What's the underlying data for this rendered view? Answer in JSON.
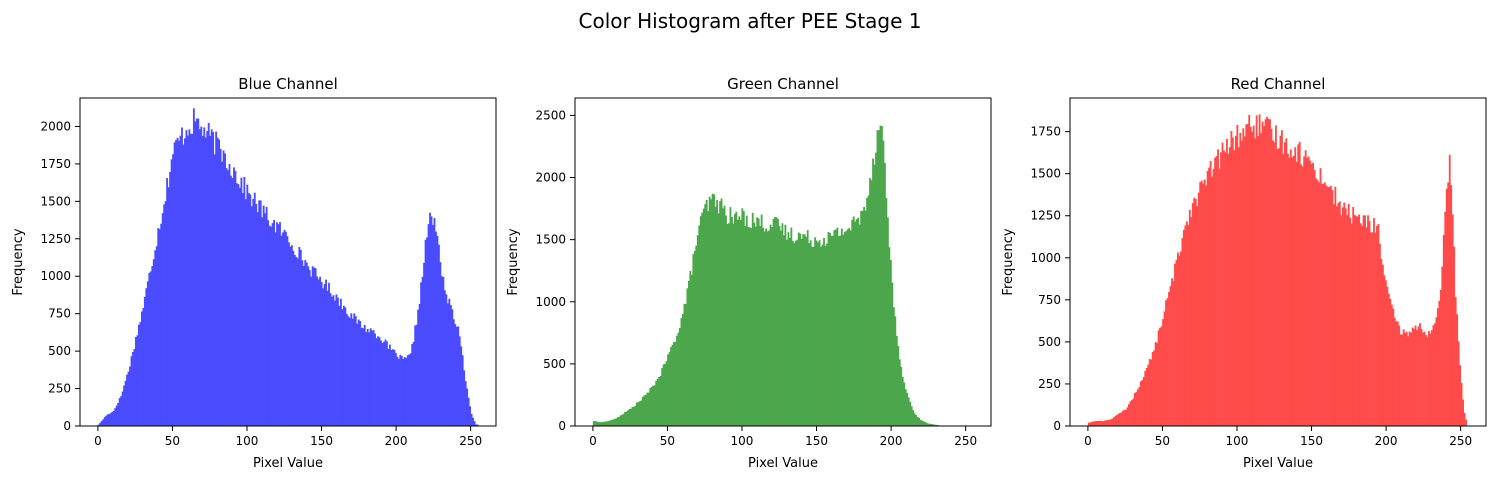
{
  "figure": {
    "title": "Color Histogram after PEE Stage 1"
  },
  "chart_data": [
    {
      "type": "bar",
      "title": "Blue Channel",
      "xlabel": "Pixel Value",
      "ylabel": "Frequency",
      "color": "#4b4bff",
      "xlim": [
        -12,
        267
      ],
      "ylim": [
        0,
        2190
      ],
      "xticks": [
        0,
        50,
        100,
        150,
        200,
        250
      ],
      "yticks": [
        0,
        250,
        500,
        750,
        1000,
        1250,
        1500,
        1750,
        2000
      ],
      "envelope": [
        [
          0,
          10
        ],
        [
          5,
          70
        ],
        [
          10,
          100
        ],
        [
          15,
          200
        ],
        [
          20,
          370
        ],
        [
          25,
          580
        ],
        [
          30,
          800
        ],
        [
          35,
          1050
        ],
        [
          40,
          1300
        ],
        [
          45,
          1550
        ],
        [
          50,
          1830
        ],
        [
          55,
          1920
        ],
        [
          60,
          2000
        ],
        [
          65,
          2040
        ],
        [
          70,
          1980
        ],
        [
          75,
          1930
        ],
        [
          80,
          1870
        ],
        [
          85,
          1800
        ],
        [
          90,
          1720
        ],
        [
          95,
          1640
        ],
        [
          100,
          1560
        ],
        [
          105,
          1500
        ],
        [
          110,
          1440
        ],
        [
          115,
          1380
        ],
        [
          120,
          1330
        ],
        [
          125,
          1280
        ],
        [
          130,
          1220
        ],
        [
          135,
          1150
        ],
        [
          140,
          1080
        ],
        [
          145,
          1020
        ],
        [
          150,
          970
        ],
        [
          155,
          920
        ],
        [
          160,
          860
        ],
        [
          165,
          800
        ],
        [
          170,
          740
        ],
        [
          175,
          690
        ],
        [
          180,
          650
        ],
        [
          185,
          630
        ],
        [
          190,
          590
        ],
        [
          195,
          530
        ],
        [
          200,
          480
        ],
        [
          205,
          440
        ],
        [
          210,
          470
        ],
        [
          214,
          700
        ],
        [
          218,
          1000
        ],
        [
          221,
          1300
        ],
        [
          224,
          1400
        ],
        [
          227,
          1320
        ],
        [
          230,
          1100
        ],
        [
          234,
          870
        ],
        [
          238,
          760
        ],
        [
          242,
          640
        ],
        [
          245,
          460
        ],
        [
          248,
          240
        ],
        [
          251,
          80
        ],
        [
          254,
          10
        ]
      ]
    },
    {
      "type": "bar",
      "title": "Green Channel",
      "xlabel": "Pixel Value",
      "ylabel": "Frequency",
      "color": "#4ca64c",
      "xlim": [
        -12,
        267
      ],
      "ylim": [
        0,
        2640
      ],
      "xticks": [
        0,
        50,
        100,
        150,
        200,
        250
      ],
      "yticks": [
        0,
        500,
        1000,
        1500,
        2000,
        2500
      ],
      "envelope": [
        [
          0,
          40
        ],
        [
          5,
          30
        ],
        [
          10,
          40
        ],
        [
          15,
          60
        ],
        [
          20,
          100
        ],
        [
          25,
          140
        ],
        [
          30,
          190
        ],
        [
          35,
          250
        ],
        [
          40,
          320
        ],
        [
          45,
          420
        ],
        [
          50,
          560
        ],
        [
          55,
          700
        ],
        [
          60,
          900
        ],
        [
          65,
          1200
        ],
        [
          70,
          1550
        ],
        [
          75,
          1750
        ],
        [
          80,
          1820
        ],
        [
          85,
          1780
        ],
        [
          90,
          1700
        ],
        [
          95,
          1670
        ],
        [
          100,
          1690
        ],
        [
          105,
          1660
        ],
        [
          110,
          1650
        ],
        [
          115,
          1630
        ],
        [
          120,
          1620
        ],
        [
          125,
          1610
        ],
        [
          130,
          1550
        ],
        [
          135,
          1540
        ],
        [
          140,
          1530
        ],
        [
          145,
          1510
        ],
        [
          150,
          1500
        ],
        [
          155,
          1510
        ],
        [
          160,
          1520
        ],
        [
          165,
          1560
        ],
        [
          170,
          1580
        ],
        [
          175,
          1630
        ],
        [
          180,
          1680
        ],
        [
          185,
          1900
        ],
        [
          189,
          2200
        ],
        [
          192,
          2450
        ],
        [
          195,
          2300
        ],
        [
          198,
          1650
        ],
        [
          201,
          1150
        ],
        [
          204,
          700
        ],
        [
          208,
          400
        ],
        [
          212,
          220
        ],
        [
          216,
          100
        ],
        [
          220,
          50
        ],
        [
          225,
          20
        ],
        [
          230,
          10
        ],
        [
          235,
          0
        ]
      ]
    },
    {
      "type": "bar",
      "title": "Red Channel",
      "xlabel": "Pixel Value",
      "ylabel": "Frequency",
      "color": "#ff4b4b",
      "xlim": [
        -12,
        267
      ],
      "ylim": [
        0,
        1950
      ],
      "xticks": [
        0,
        50,
        100,
        150,
        200,
        250
      ],
      "yticks": [
        0,
        250,
        500,
        750,
        1000,
        1250,
        1500,
        1750
      ],
      "envelope": [
        [
          0,
          20
        ],
        [
          5,
          30
        ],
        [
          10,
          30
        ],
        [
          15,
          40
        ],
        [
          20,
          70
        ],
        [
          25,
          100
        ],
        [
          30,
          170
        ],
        [
          35,
          260
        ],
        [
          40,
          360
        ],
        [
          45,
          480
        ],
        [
          50,
          650
        ],
        [
          55,
          820
        ],
        [
          60,
          1000
        ],
        [
          65,
          1200
        ],
        [
          70,
          1320
        ],
        [
          75,
          1400
        ],
        [
          80,
          1480
        ],
        [
          85,
          1560
        ],
        [
          90,
          1620
        ],
        [
          95,
          1680
        ],
        [
          100,
          1720
        ],
        [
          105,
          1760
        ],
        [
          110,
          1790
        ],
        [
          115,
          1780
        ],
        [
          120,
          1760
        ],
        [
          125,
          1730
        ],
        [
          130,
          1700
        ],
        [
          135,
          1660
        ],
        [
          140,
          1640
        ],
        [
          145,
          1600
        ],
        [
          150,
          1560
        ],
        [
          155,
          1500
        ],
        [
          160,
          1440
        ],
        [
          165,
          1380
        ],
        [
          170,
          1290
        ],
        [
          175,
          1270
        ],
        [
          180,
          1240
        ],
        [
          185,
          1220
        ],
        [
          190,
          1200
        ],
        [
          195,
          1170
        ],
        [
          198,
          950
        ],
        [
          202,
          760
        ],
        [
          206,
          640
        ],
        [
          210,
          560
        ],
        [
          214,
          550
        ],
        [
          218,
          570
        ],
        [
          222,
          600
        ],
        [
          226,
          560
        ],
        [
          230,
          540
        ],
        [
          234,
          620
        ],
        [
          237,
          800
        ],
        [
          239,
          1100
        ],
        [
          241,
          1400
        ],
        [
          243,
          1600
        ],
        [
          245,
          1250
        ],
        [
          247,
          800
        ],
        [
          249,
          500
        ],
        [
          251,
          250
        ],
        [
          253,
          80
        ],
        [
          255,
          0
        ]
      ]
    }
  ]
}
